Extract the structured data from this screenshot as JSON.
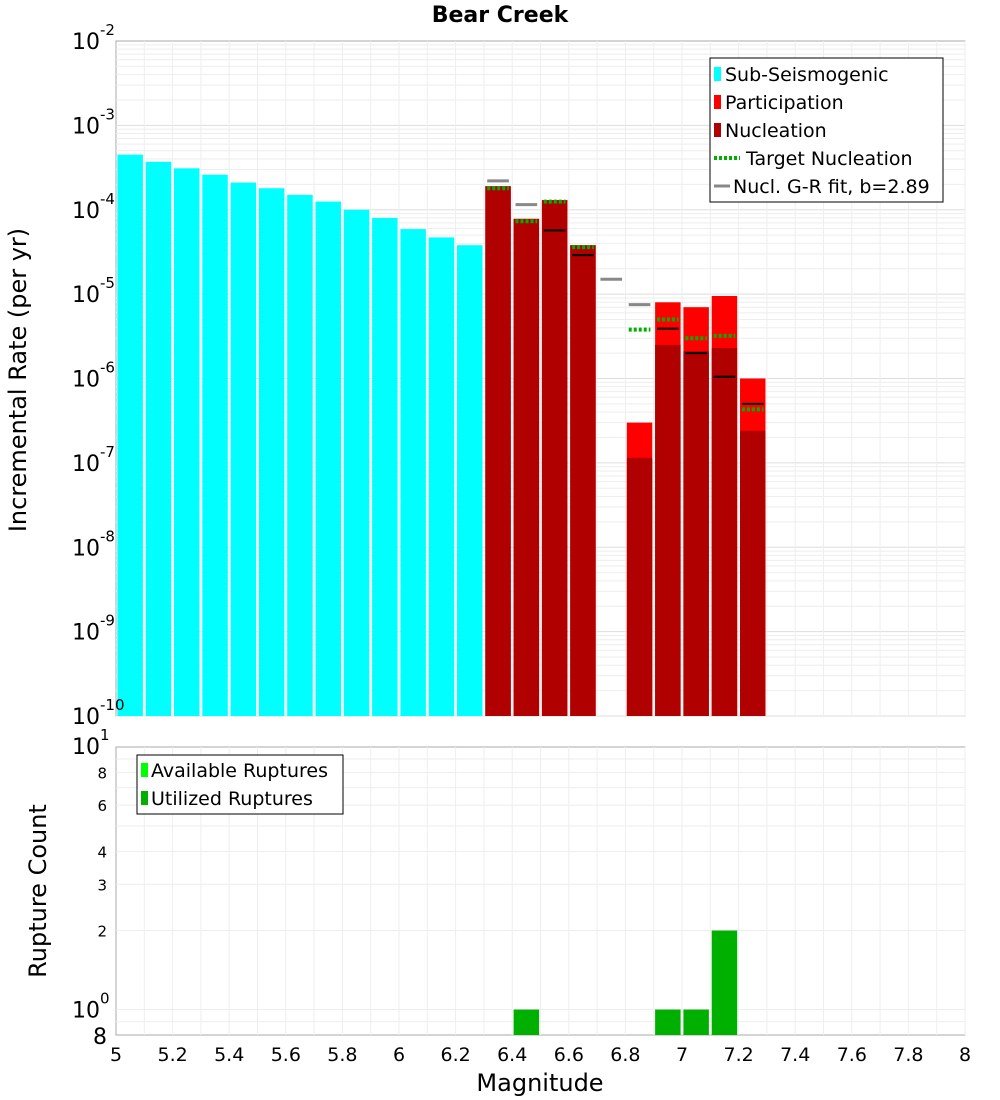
{
  "chart_data": [
    {
      "type": "bar",
      "title": "Bear Creek",
      "xlabel": "Magnitude",
      "ylabel": "Incremental Rate (per yr)",
      "yscale": "log",
      "ylim_exponents": [
        -10,
        -2
      ],
      "xlim": [
        5,
        8
      ],
      "legend": {
        "position": "top-right",
        "entries": [
          {
            "label": "Sub-Seismogenic",
            "color": "#00ffff",
            "style": "box"
          },
          {
            "label": "Participation",
            "color": "#ff0000",
            "style": "box"
          },
          {
            "label": "Nucleation",
            "color": "#b00000",
            "style": "box"
          },
          {
            "label": "Target Nucleation",
            "color": "#00b000",
            "style": "dotted"
          },
          {
            "label": "Nucl. G-R fit, b=2.89",
            "color": "#888888",
            "style": "line"
          }
        ]
      },
      "bar_width": 0.09,
      "sub_seismogenic": {
        "name": "Sub-Seismogenic",
        "color": "#00ffff",
        "x": [
          5.05,
          5.15,
          5.25,
          5.35,
          5.45,
          5.55,
          5.65,
          5.75,
          5.85,
          5.95,
          6.05,
          6.15,
          6.25
        ],
        "values": [
          0.00045,
          0.00037,
          0.00031,
          0.00026,
          0.00021,
          0.00018,
          0.00015,
          0.000125,
          0.0001,
          8e-05,
          5.9e-05,
          4.7e-05,
          3.8e-05
        ]
      },
      "participation": {
        "name": "Participation",
        "color": "#ff0000",
        "x": [
          6.35,
          6.45,
          6.55,
          6.65,
          6.85,
          6.95,
          7.05,
          7.15,
          7.25
        ],
        "values": [
          0.00019,
          7.8e-05,
          0.00013,
          3.8e-05,
          3e-07,
          8e-06,
          7e-06,
          9.5e-06,
          1e-06
        ]
      },
      "nucleation": {
        "name": "Nucleation",
        "color": "#b00000",
        "x": [
          6.35,
          6.45,
          6.55,
          6.65,
          6.85,
          6.95,
          7.05,
          7.15,
          7.25
        ],
        "values": [
          0.00019,
          7.8e-05,
          0.00013,
          3.8e-05,
          1.15e-07,
          2.5e-06,
          2.1e-06,
          2.3e-06,
          2.4e-07
        ]
      },
      "target_nucleation": {
        "name": "Target Nucleation",
        "color": "#00b000",
        "x": [
          6.35,
          6.45,
          6.55,
          6.65,
          6.85,
          6.95,
          7.05,
          7.15,
          7.25
        ],
        "values": [
          0.00018,
          7.3e-05,
          0.000125,
          3.6e-05,
          3.8e-06,
          5e-06,
          3e-06,
          3.2e-06,
          4.3e-07
        ]
      },
      "gr_fit": {
        "name": "Nucl. G-R fit, b=2.89",
        "color": "#888888",
        "x": [
          6.35,
          6.45,
          6.75,
          6.85
        ],
        "values": [
          0.00022,
          0.000115,
          1.5e-05,
          7.5e-06
        ]
      },
      "black_marks": {
        "color": "#000000",
        "x": [
          6.55,
          6.65,
          6.95,
          7.05,
          7.15,
          7.25
        ],
        "values": [
          5.7e-05,
          2.9e-05,
          3.9e-06,
          2e-06,
          1.05e-06,
          5e-07
        ]
      }
    },
    {
      "type": "bar",
      "xlabel": "Magnitude",
      "ylabel": "Rupture Count",
      "yscale": "log",
      "xlim": [
        5,
        8
      ],
      "legend": {
        "position": "top-left",
        "entries": [
          {
            "label": "Available Ruptures",
            "color": "#00ff00",
            "style": "box"
          },
          {
            "label": "Utilized Ruptures",
            "color": "#00b000",
            "style": "box"
          }
        ]
      },
      "series": [
        {
          "name": "Utilized Ruptures",
          "color": "#00b000",
          "x": [
            6.45,
            6.95,
            7.05,
            7.15
          ],
          "values": [
            1,
            1,
            1,
            2
          ]
        }
      ]
    }
  ],
  "x_ticks": [
    "5",
    "5.2",
    "5.4",
    "5.6",
    "5.8",
    "6",
    "6.2",
    "6.4",
    "6.6",
    "6.8",
    "7",
    "7.2",
    "7.4",
    "7.6",
    "7.8",
    "8"
  ],
  "top_y_ticks": [
    {
      "base": "10",
      "exp": "-2"
    },
    {
      "base": "10",
      "exp": "-3"
    },
    {
      "base": "10",
      "exp": "-4"
    },
    {
      "base": "10",
      "exp": "-5"
    },
    {
      "base": "10",
      "exp": "-6"
    },
    {
      "base": "10",
      "exp": "-7"
    },
    {
      "base": "10",
      "exp": "-8"
    },
    {
      "base": "10",
      "exp": "-9"
    },
    {
      "base": "10",
      "exp": "-10"
    }
  ],
  "bottom_y_ticks": {
    "major_top": {
      "base": "10",
      "exp": "1"
    },
    "major_bottom": {
      "base": "10",
      "exp": "0"
    },
    "minor": [
      "8",
      "6",
      "4",
      "3",
      "2"
    ],
    "bottom_label": "8"
  }
}
